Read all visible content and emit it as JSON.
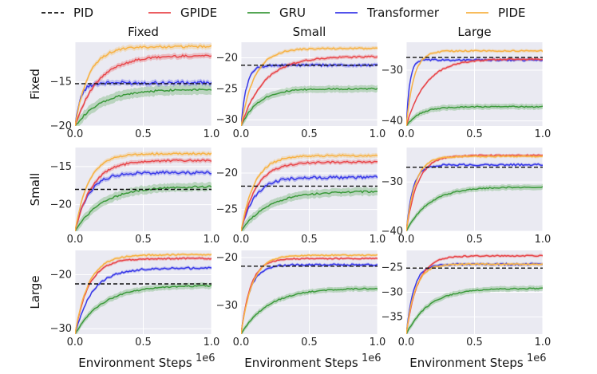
{
  "chart_data": {
    "type": "line",
    "title": "",
    "xlabel": "Environment Steps",
    "x_scale_label": "1e6",
    "legend": [
      {
        "name": "PID",
        "color": "#111111",
        "dash": true
      },
      {
        "name": "GPIDE",
        "color": "#e8474b",
        "dash": false
      },
      {
        "name": "GRU",
        "color": "#3c9a3c",
        "dash": false
      },
      {
        "name": "Transformer",
        "color": "#3a3ae8",
        "dash": false
      },
      {
        "name": "PIDE",
        "color": "#f7b245",
        "dash": false
      }
    ],
    "col_titles": [
      "Fixed",
      "Small",
      "Large"
    ],
    "row_titles": [
      "Fixed",
      "Small",
      "Large"
    ],
    "x_ticks": [
      "0.0",
      "0.5",
      "1.0"
    ],
    "xlim": [
      0,
      1
    ],
    "panels": [
      {
        "row": "Fixed",
        "col": "Fixed",
        "ylim": [
          -20,
          -10.5
        ],
        "y_ticks": [
          {
            "v": -15,
            "label": "−15"
          },
          {
            "v": -20,
            "label": "−20"
          }
        ],
        "pid": -15.2,
        "series": {
          "PIDE": {
            "start": -20,
            "end": -11.0,
            "k": 10
          },
          "GPIDE": {
            "start": -20,
            "end": -12.0,
            "k": 6
          },
          "Transformer": {
            "start": -20,
            "end": -15.1,
            "k": 25
          },
          "GRU": {
            "start": -20,
            "end": -15.8,
            "k": 5
          }
        }
      },
      {
        "row": "Fixed",
        "col": "Small",
        "ylim": [
          -31,
          -17.5
        ],
        "y_ticks": [
          {
            "v": -20,
            "label": "−20"
          },
          {
            "v": -25,
            "label": "−25"
          },
          {
            "v": -30,
            "label": "−30"
          }
        ],
        "pid": -21.2,
        "series": {
          "PIDE": {
            "start": -31,
            "end": -18.5,
            "k": 10
          },
          "GPIDE": {
            "start": -31,
            "end": -19.8,
            "k": 6
          },
          "Transformer": {
            "start": -31,
            "end": -21.2,
            "k": 25
          },
          "GRU": {
            "start": -31,
            "end": -25.0,
            "k": 8
          }
        }
      },
      {
        "row": "Fixed",
        "col": "Large",
        "ylim": [
          -41,
          -24.5
        ],
        "y_ticks": [
          {
            "v": -30,
            "label": "−30"
          },
          {
            "v": -40,
            "label": "−40"
          }
        ],
        "pid": -27.5,
        "series": {
          "PIDE": {
            "start": -41,
            "end": -26.2,
            "k": 18
          },
          "GPIDE": {
            "start": -41,
            "end": -27.8,
            "k": 7
          },
          "Transformer": {
            "start": -41,
            "end": -28.0,
            "k": 40
          },
          "GRU": {
            "start": -41,
            "end": -37.2,
            "k": 10
          }
        }
      },
      {
        "row": "Small",
        "col": "Fixed",
        "ylim": [
          -23.5,
          -12.5
        ],
        "y_ticks": [
          {
            "v": -15,
            "label": "−15"
          },
          {
            "v": -20,
            "label": "−20"
          }
        ],
        "pid": -18.0,
        "series": {
          "PIDE": {
            "start": -23.5,
            "end": -13.3,
            "k": 10
          },
          "GPIDE": {
            "start": -23.5,
            "end": -14.2,
            "k": 8
          },
          "Transformer": {
            "start": -23.5,
            "end": -15.8,
            "k": 10
          },
          "GRU": {
            "start": -23.5,
            "end": -17.6,
            "k": 5
          }
        }
      },
      {
        "row": "Small",
        "col": "Small",
        "ylim": [
          -28,
          -16.5
        ],
        "y_ticks": [
          {
            "v": -20,
            "label": "−20"
          },
          {
            "v": -25,
            "label": "−25"
          }
        ],
        "pid": -21.8,
        "series": {
          "PIDE": {
            "start": -28,
            "end": -17.6,
            "k": 10
          },
          "GPIDE": {
            "start": -28,
            "end": -18.5,
            "k": 9
          },
          "Transformer": {
            "start": -28,
            "end": -20.6,
            "k": 10
          },
          "GRU": {
            "start": -28,
            "end": -22.5,
            "k": 5
          }
        }
      },
      {
        "row": "Small",
        "col": "Large",
        "ylim": [
          -40,
          -23
        ],
        "y_ticks": [
          {
            "v": -30,
            "label": "−30"
          },
          {
            "v": -40,
            "label": "−40"
          }
        ],
        "pid": -27.0,
        "series": {
          "PIDE": {
            "start": -40,
            "end": -24.8,
            "k": 15
          },
          "GPIDE": {
            "start": -40,
            "end": -24.6,
            "k": 12
          },
          "Transformer": {
            "start": -40,
            "end": -26.5,
            "k": 20
          },
          "GRU": {
            "start": -40,
            "end": -31.0,
            "k": 6
          }
        }
      },
      {
        "row": "Large",
        "col": "Fixed",
        "ylim": [
          -31,
          -15.5
        ],
        "y_ticks": [
          {
            "v": -20,
            "label": "−20"
          },
          {
            "v": -30,
            "label": "−30"
          }
        ],
        "pid": -21.7,
        "series": {
          "PIDE": {
            "start": -31,
            "end": -16.3,
            "k": 10
          },
          "GPIDE": {
            "start": -31,
            "end": -17.0,
            "k": 10
          },
          "Transformer": {
            "start": -31,
            "end": -18.8,
            "k": 8
          },
          "GRU": {
            "start": -31,
            "end": -22.0,
            "k": 5
          }
        }
      },
      {
        "row": "Large",
        "col": "Small",
        "ylim": [
          -36,
          -18.5
        ],
        "y_ticks": [
          {
            "v": -20,
            "label": "−20"
          },
          {
            "v": -30,
            "label": "−30"
          }
        ],
        "pid": -21.8,
        "series": {
          "PIDE": {
            "start": -36,
            "end": -19.5,
            "k": 12
          },
          "GPIDE": {
            "start": -36,
            "end": -20.2,
            "k": 14
          },
          "Transformer": {
            "start": -36,
            "end": -21.5,
            "k": 15
          },
          "GRU": {
            "start": -36,
            "end": -26.4,
            "k": 5
          }
        }
      },
      {
        "row": "Large",
        "col": "Large",
        "ylim": [
          -38.5,
          -21.5
        ],
        "y_ticks": [
          {
            "v": -25,
            "label": "−25"
          },
          {
            "v": -30,
            "label": "−30"
          },
          {
            "v": -35,
            "label": "−35"
          }
        ],
        "pid": -25.1,
        "series": {
          "PIDE": {
            "start": -38.5,
            "end": -24.3,
            "k": 15
          },
          "GPIDE": {
            "start": -38.5,
            "end": -22.6,
            "k": 12
          },
          "Transformer": {
            "start": -38.5,
            "end": -24.3,
            "k": 18
          },
          "GRU": {
            "start": -38.5,
            "end": -29.2,
            "k": 6
          }
        }
      }
    ]
  }
}
